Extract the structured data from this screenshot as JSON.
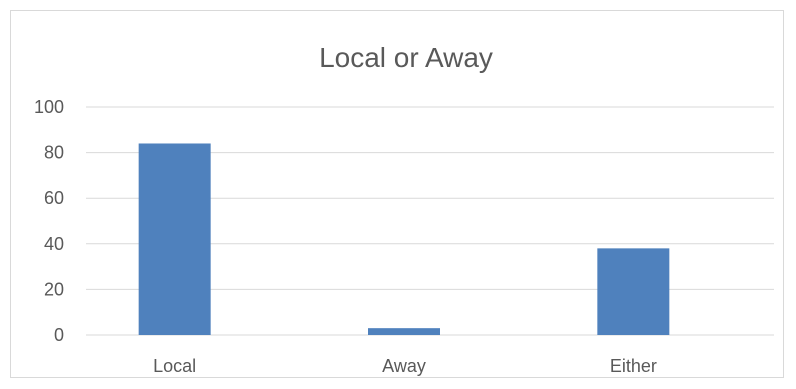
{
  "chart_data": {
    "type": "bar",
    "title": "Local or Away",
    "xlabel": "",
    "ylabel": "",
    "categories": [
      "Local",
      "Away",
      "Either"
    ],
    "values": [
      84,
      3,
      38
    ],
    "ylim": [
      0,
      100
    ],
    "yticks": [
      "0",
      "20",
      "40",
      "60",
      "80",
      "100"
    ],
    "grid": true,
    "legend": "none",
    "bar_color": "#4f81bd",
    "gridline_color": "#d9d9d9",
    "text_color": "#595959"
  }
}
